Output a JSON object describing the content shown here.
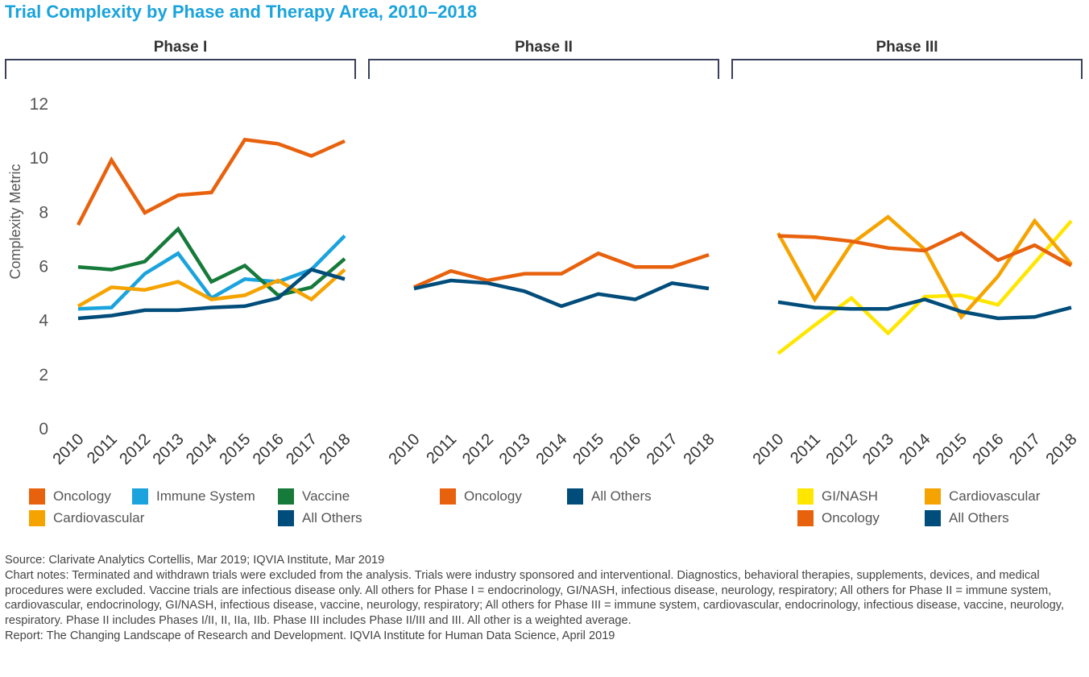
{
  "title": "Trial Complexity by Phase and Therapy Area, 2010–2018",
  "ylabel": "Complexity Metric",
  "y_ticks": [
    "0",
    "2",
    "4",
    "6",
    "8",
    "10",
    "12"
  ],
  "colors": {
    "oncology": "#E8620E",
    "immune_system": "#1AA3DC",
    "vaccine": "#167A3A",
    "cardiovascular": "#F5A300",
    "all_others": "#004C7A",
    "gi_nash": "#FFE600",
    "title": "#1AA3DC"
  },
  "chart_data": [
    {
      "type": "line",
      "title": "Phase I",
      "x": [
        "2010",
        "2011",
        "2012",
        "2013",
        "2014",
        "2015",
        "2016",
        "2017",
        "2018"
      ],
      "ylim": [
        0,
        12
      ],
      "ylabel": "Complexity Metric",
      "grid": false,
      "series": [
        {
          "name": "Oncology",
          "color_key": "oncology",
          "values": [
            7.5,
            9.9,
            7.95,
            8.6,
            8.7,
            10.65,
            10.5,
            10.05,
            10.6
          ]
        },
        {
          "name": "Immune System",
          "color_key": "immune_system",
          "values": [
            4.4,
            4.45,
            5.7,
            6.45,
            4.8,
            5.5,
            5.4,
            5.85,
            7.1
          ]
        },
        {
          "name": "Vaccine",
          "color_key": "vaccine",
          "values": [
            5.95,
            5.85,
            6.15,
            7.35,
            5.4,
            6.0,
            4.9,
            5.2,
            6.25
          ]
        },
        {
          "name": "Cardiovascular",
          "color_key": "cardiovascular",
          "values": [
            4.5,
            5.2,
            5.1,
            5.4,
            4.75,
            4.9,
            5.45,
            4.75,
            5.85
          ]
        },
        {
          "name": "All Others",
          "color_key": "all_others",
          "values": [
            4.05,
            4.15,
            4.35,
            4.35,
            4.45,
            4.5,
            4.8,
            5.85,
            5.5
          ]
        }
      ]
    },
    {
      "type": "line",
      "title": "Phase II",
      "x": [
        "2010",
        "2011",
        "2012",
        "2013",
        "2014",
        "2015",
        "2016",
        "2017",
        "2018"
      ],
      "ylim": [
        0,
        12
      ],
      "grid": false,
      "series": [
        {
          "name": "Oncology",
          "color_key": "oncology",
          "values": [
            5.2,
            5.8,
            5.45,
            5.7,
            5.7,
            6.45,
            5.95,
            5.95,
            6.4
          ]
        },
        {
          "name": "All Others",
          "color_key": "all_others",
          "values": [
            5.15,
            5.45,
            5.35,
            5.05,
            4.5,
            4.95,
            4.75,
            5.35,
            5.15
          ]
        }
      ]
    },
    {
      "type": "line",
      "title": "Phase III",
      "x": [
        "2010",
        "2011",
        "2012",
        "2013",
        "2014",
        "2015",
        "2016",
        "2017",
        "2018"
      ],
      "ylim": [
        0,
        12
      ],
      "grid": false,
      "series": [
        {
          "name": "GI/NASH",
          "color_key": "gi_nash",
          "values": [
            2.75,
            3.8,
            4.8,
            3.5,
            4.85,
            4.9,
            4.55,
            6.1,
            7.65
          ]
        },
        {
          "name": "Cardiovascular",
          "color_key": "cardiovascular",
          "values": [
            7.2,
            4.75,
            6.8,
            7.8,
            6.6,
            4.1,
            5.6,
            7.65,
            6.05
          ]
        },
        {
          "name": "Oncology",
          "color_key": "oncology",
          "values": [
            7.1,
            7.05,
            6.9,
            6.65,
            6.55,
            7.2,
            6.2,
            6.75,
            6.0
          ]
        },
        {
          "name": "All Others",
          "color_key": "all_others",
          "values": [
            4.65,
            4.45,
            4.4,
            4.4,
            4.75,
            4.3,
            4.05,
            4.1,
            4.45
          ]
        }
      ]
    }
  ],
  "legends": {
    "phase1": {
      "oncology": "Oncology",
      "immune_system": "Immune System",
      "vaccine": "Vaccine",
      "cardiovascular": "Cardiovascular",
      "all_others": "All Others"
    },
    "phase2": {
      "oncology": "Oncology",
      "all_others": "All Others"
    },
    "phase3": {
      "gi_nash": "GI/NASH",
      "cardiovascular": "Cardiovascular",
      "oncology": "Oncology",
      "all_others": "All Others"
    }
  },
  "footer": {
    "source": "Source: Clarivate Analytics Cortellis, Mar 2019; IQVIA Institute, Mar 2019",
    "notes": "Chart notes: Terminated and withdrawn trials were excluded from the analysis. Trials were industry sponsored and interventional. Diagnostics, behavioral therapies, supplements, devices, and medical procedures were excluded. Vaccine trials are infectious disease only. All others for Phase I = endocrinology, GI/NASH, infectious disease, neurology, respiratory; All others for Phase II = immune system, cardiovascular, endocrinology, GI/NASH, infectious disease, vaccine, neurology, respiratory; All others for Phase III = immune system, cardiovascular, endocrinology, infectious disease, vaccine, neurology, respiratory. Phase II includes Phases I/II, II, IIa, IIb. Phase III includes Phase II/III and III. All other is a weighted average.",
    "report": "Report: The Changing Landscape of Research and Development. IQVIA Institute for Human Data Science, April 2019"
  }
}
